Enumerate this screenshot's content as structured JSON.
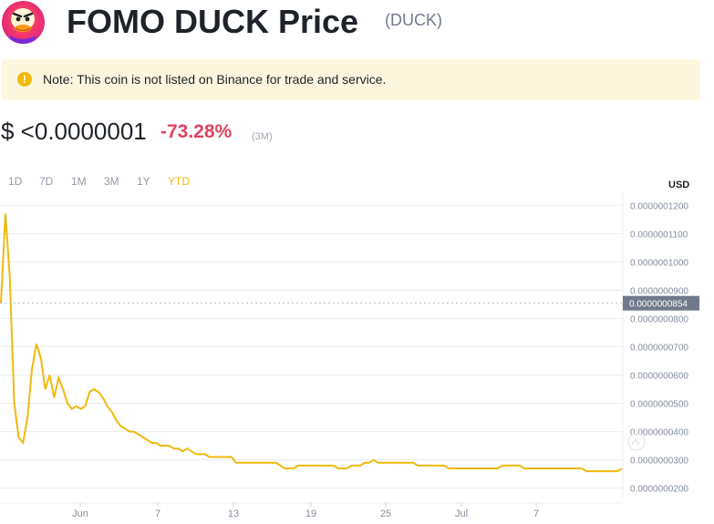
{
  "coin": {
    "title": "FOMO DUCK Price",
    "symbol": "(DUCK)"
  },
  "note": {
    "icon": "!",
    "text": "Note: This coin is not listed on Binance for trade and service."
  },
  "price": {
    "value": "$ <0.0000001",
    "change": "-73.28%",
    "period": "(3M)"
  },
  "ranges": [
    {
      "label": "1D",
      "active": false
    },
    {
      "label": "7D",
      "active": false
    },
    {
      "label": "1M",
      "active": false
    },
    {
      "label": "3M",
      "active": false
    },
    {
      "label": "1Y",
      "active": false
    },
    {
      "label": "YTD",
      "active": true
    }
  ],
  "colors": {
    "line": "#f0b90b",
    "negative": "#e0435e",
    "grid": "#eaecef",
    "current_label_bg": "#707a8a"
  },
  "chart_data": {
    "type": "line",
    "unit": "USD",
    "y_ticks": [
      "0.0000001200",
      "0.0000001100",
      "0.0000001000",
      "0.0000000900",
      "0.0000000800",
      "0.0000000700",
      "0.0000000600",
      "0.0000000500",
      "0.0000000400",
      "0.0000000300",
      "0.0000000200"
    ],
    "ylim": [
      1.7e-08,
      1.23e-07
    ],
    "x_ticks": [
      "Jun",
      "7",
      "13",
      "19",
      "25",
      "Jul",
      "7"
    ],
    "current_value_label": "0.0000000854",
    "current_value": 8.54e-08,
    "series": [
      {
        "values": [
          8.54e-08,
          1.17e-07,
          9.5e-08,
          5e-08,
          3.8e-08,
          3.6e-08,
          4.5e-08,
          6.2e-08,
          7.1e-08,
          6.6e-08,
          5.5e-08,
          6e-08,
          5.2e-08,
          5.9e-08,
          5.5e-08,
          5e-08,
          4.8e-08,
          4.9e-08,
          4.8e-08,
          4.9e-08,
          5.4e-08,
          5.5e-08,
          5.4e-08,
          5.2e-08,
          4.9e-08,
          4.7e-08,
          4.4e-08,
          4.2e-08,
          4.1e-08,
          4e-08,
          4e-08,
          3.9e-08,
          3.8e-08,
          3.7e-08,
          3.6e-08,
          3.6e-08,
          3.5e-08,
          3.5e-08,
          3.5e-08,
          3.4e-08,
          3.4e-08,
          3.3e-08,
          3.4e-08,
          3.3e-08,
          3.2e-08,
          3.2e-08,
          3.2e-08,
          3.1e-08,
          3.1e-08,
          3.1e-08,
          3.1e-08,
          3.1e-08,
          3.1e-08,
          2.9e-08,
          2.9e-08,
          2.9e-08,
          2.9e-08,
          2.9e-08,
          2.9e-08,
          2.9e-08,
          2.9e-08,
          2.9e-08,
          2.9e-08,
          2.8e-08,
          2.7e-08,
          2.7e-08,
          2.7e-08,
          2.8e-08,
          2.8e-08,
          2.8e-08,
          2.8e-08,
          2.8e-08,
          2.8e-08,
          2.8e-08,
          2.8e-08,
          2.8e-08,
          2.7e-08,
          2.7e-08,
          2.7e-08,
          2.8e-08,
          2.8e-08,
          2.8e-08,
          2.9e-08,
          2.9e-08,
          3e-08,
          2.9e-08,
          2.9e-08,
          2.9e-08,
          2.9e-08,
          2.9e-08,
          2.9e-08,
          2.9e-08,
          2.9e-08,
          2.9e-08,
          2.8e-08,
          2.8e-08,
          2.8e-08,
          2.8e-08,
          2.8e-08,
          2.8e-08,
          2.8e-08,
          2.7e-08,
          2.7e-08,
          2.7e-08,
          2.7e-08,
          2.7e-08,
          2.7e-08,
          2.7e-08,
          2.7e-08,
          2.7e-08,
          2.7e-08,
          2.7e-08,
          2.7e-08,
          2.8e-08,
          2.8e-08,
          2.8e-08,
          2.8e-08,
          2.8e-08,
          2.7e-08,
          2.7e-08,
          2.7e-08,
          2.7e-08,
          2.7e-08,
          2.7e-08,
          2.7e-08,
          2.7e-08,
          2.7e-08,
          2.7e-08,
          2.7e-08,
          2.7e-08,
          2.7e-08,
          2.7e-08,
          2.6e-08,
          2.6e-08,
          2.6e-08,
          2.6e-08,
          2.6e-08,
          2.6e-08,
          2.6e-08,
          2.6e-08,
          2.7e-08
        ]
      }
    ]
  }
}
